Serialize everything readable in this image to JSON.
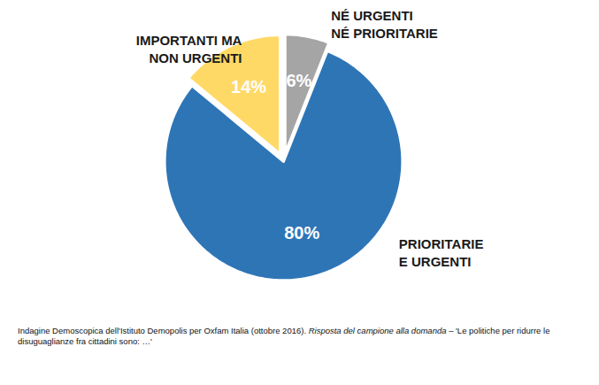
{
  "chart_data": {
    "type": "pie",
    "categories": [
      "NÉ URGENTI\nNÉ PRIORITARIE",
      "PRIORITARIE\nE URGENTI",
      "IMPORTANTI MA\nNON URGENTI"
    ],
    "values": [
      6,
      80,
      14
    ],
    "value_labels": [
      "6%",
      "80%",
      "14%"
    ],
    "colors": [
      "#a5a5a5",
      "#2e75b6",
      "#ffd966"
    ],
    "data_labels": true,
    "caption": [
      "Indagine Demoscopica dell'Istituto Demopolis per Oxfam Italia (ottobre 2016).",
      "Risposta del campione alla domanda",
      "– 'Le politiche per ridurre le disuguaglianze fra cittadini sono: …'"
    ]
  }
}
